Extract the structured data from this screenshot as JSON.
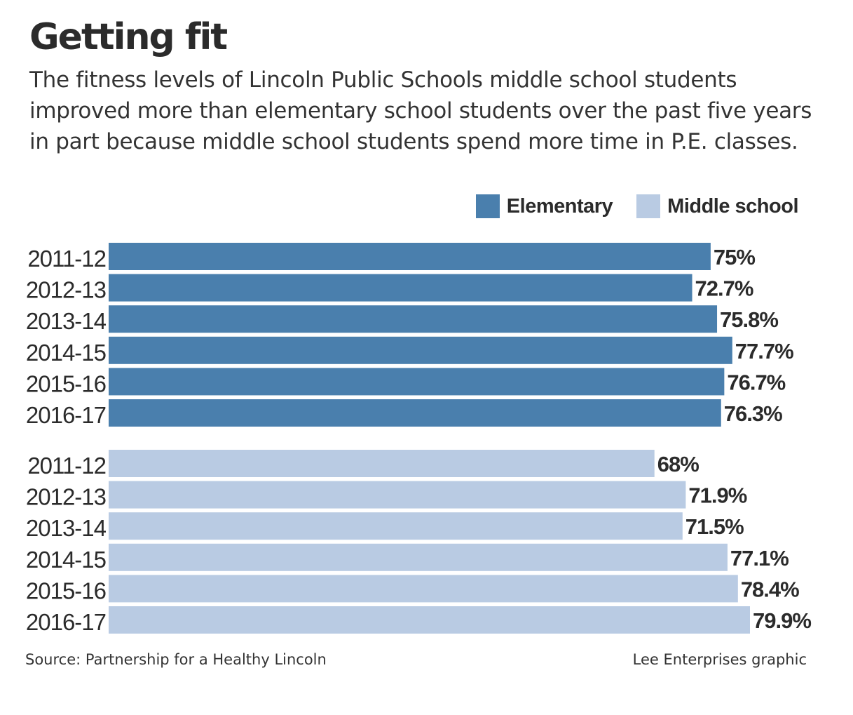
{
  "header": {
    "title": "Getting fit",
    "subtitle": "The fitness levels of Lincoln Public Schools middle school students improved more than elementary school students over the past five years in part because middle school students spend more time in P.E. classes."
  },
  "legend": {
    "items": [
      {
        "label": "Elementary",
        "color": "#4a7fad"
      },
      {
        "label": "Middle school",
        "color": "#b9cbe3"
      }
    ]
  },
  "chart_data": {
    "type": "bar",
    "orientation": "horizontal",
    "title": "Getting fit",
    "categories": [
      "2011-12",
      "2012-13",
      "2013-14",
      "2014-15",
      "2015-16",
      "2016-17"
    ],
    "series": [
      {
        "name": "Elementary",
        "color": "#4a7fad",
        "values": [
          75,
          72.7,
          75.8,
          77.7,
          76.7,
          76.3
        ],
        "labels": [
          "75%",
          "72.7%",
          "75.8%",
          "77.7%",
          "76.7%",
          "76.3%"
        ]
      },
      {
        "name": "Middle school",
        "color": "#b9cbe3",
        "values": [
          68,
          71.9,
          71.5,
          77.1,
          78.4,
          79.9
        ],
        "labels": [
          "68%",
          "71.9%",
          "71.5%",
          "77.1%",
          "78.4%",
          "79.9%"
        ]
      }
    ],
    "xlim": [
      0,
      80
    ],
    "grid": false,
    "legend_position": "top-right"
  },
  "footer": {
    "source": "Source: Partnership for a Healthy Lincoln",
    "credit": "Lee Enterprises graphic"
  }
}
